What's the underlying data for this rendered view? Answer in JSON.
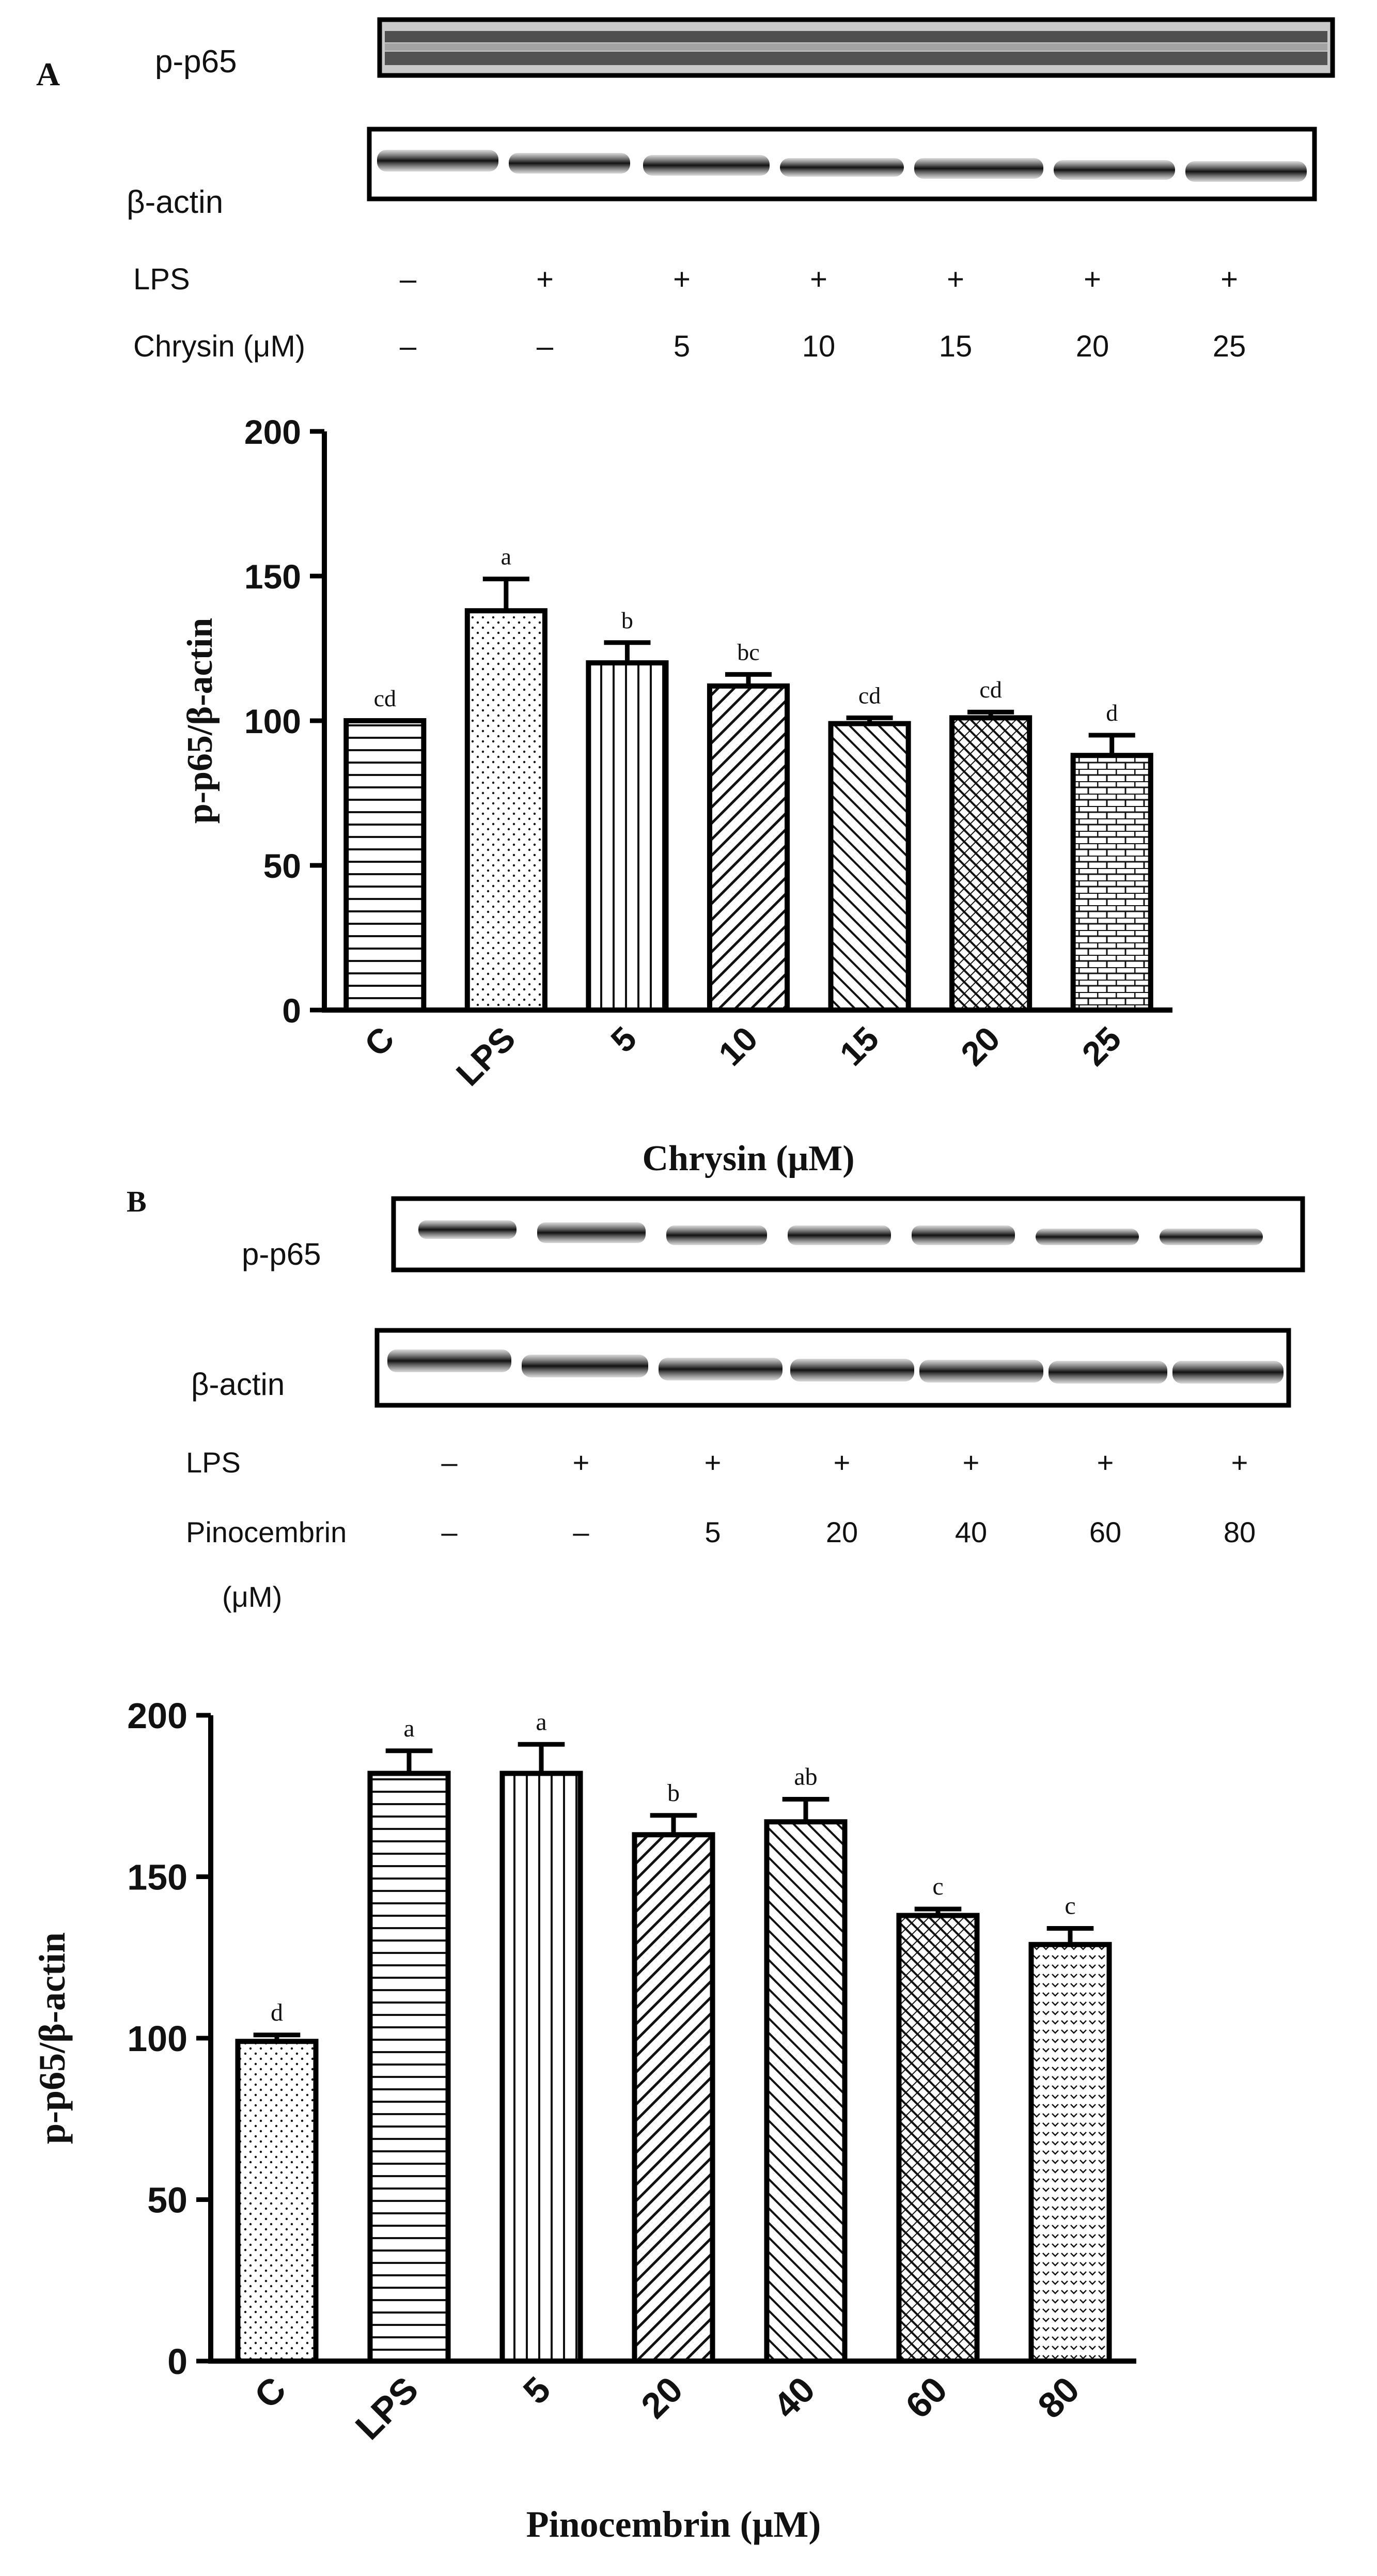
{
  "panel_a": {
    "label": "A",
    "blot_labels": {
      "target": "p-p65",
      "control": "β-actin"
    },
    "conditions": {
      "lps_label": "LPS",
      "dose_label": "Chrysin (μM)",
      "lps": [
        "–",
        "+",
        "+",
        "+",
        "+",
        "+",
        "+"
      ],
      "dose": [
        "–",
        "–",
        "5",
        "10",
        "15",
        "20",
        "25"
      ]
    }
  },
  "panel_b": {
    "label": "B",
    "blot_labels": {
      "target": "p-p65",
      "control": "β-actin"
    },
    "conditions": {
      "lps_label": "LPS",
      "dose_label_line1": "Pinocembrin",
      "dose_label_line2": "(μM)",
      "lps": [
        "–",
        "+",
        "+",
        "+",
        "+",
        "+",
        "+"
      ],
      "dose": [
        "–",
        "–",
        "5",
        "20",
        "40",
        "60",
        "80"
      ]
    }
  },
  "chart_data": [
    {
      "type": "bar",
      "title": "",
      "xlabel": "Chrysin (μM)",
      "ylabel": "p-p65/β-actin",
      "ylim": [
        0,
        200
      ],
      "yticks": [
        0,
        50,
        100,
        150,
        200
      ],
      "categories": [
        "C",
        "LPS",
        "5",
        "10",
        "15",
        "20",
        "25"
      ],
      "values": [
        100,
        138,
        120,
        112,
        99,
        101,
        88
      ],
      "errors": [
        0,
        11,
        7,
        4,
        2,
        2,
        7
      ],
      "significance": [
        "cd",
        "a",
        "b",
        "bc",
        "cd",
        "cd",
        "d"
      ],
      "patterns": [
        "hlines",
        "dots",
        "vlines",
        "diag",
        "backdiag",
        "cross",
        "brick"
      ]
    },
    {
      "type": "bar",
      "title": "",
      "xlabel": "Pinocembrin (μM)",
      "ylabel": "p-p65/β-actin",
      "ylim": [
        0,
        200
      ],
      "yticks": [
        0,
        50,
        100,
        150,
        200
      ],
      "categories": [
        "C",
        "LPS",
        "5",
        "20",
        "40",
        "60",
        "80"
      ],
      "values": [
        99,
        182,
        182,
        163,
        167,
        138,
        129
      ],
      "errors": [
        2,
        7,
        9,
        6,
        7,
        2,
        5
      ],
      "significance": [
        "d",
        "a",
        "a",
        "b",
        "ab",
        "c",
        "c"
      ],
      "patterns": [
        "dots",
        "hlines",
        "vlines",
        "diag",
        "backdiag",
        "cross",
        "chevron"
      ]
    }
  ]
}
